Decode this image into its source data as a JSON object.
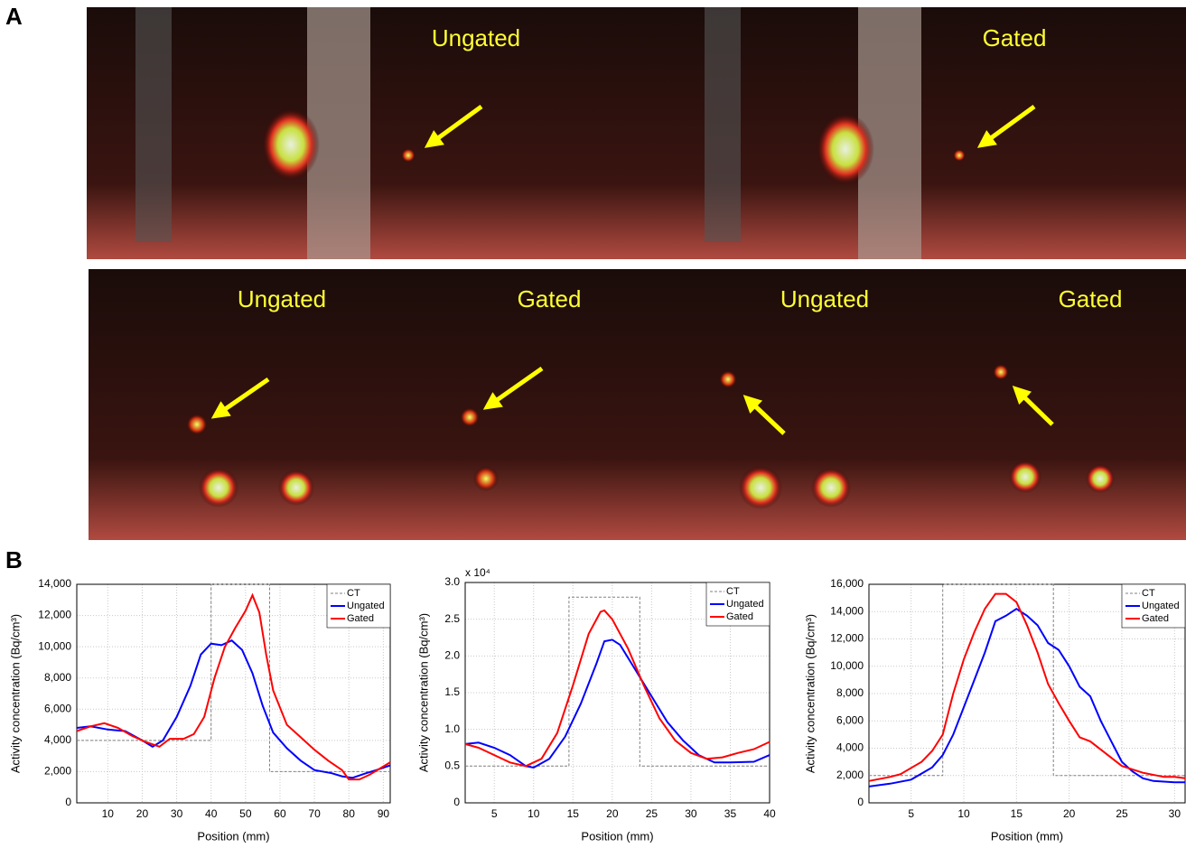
{
  "panel_a": {
    "label": "A",
    "top_images": [
      "Ungated",
      "Gated"
    ],
    "bottom_images": [
      "Ungated",
      "Gated",
      "Ungated",
      "Gated"
    ]
  },
  "panel_b": {
    "label": "B"
  },
  "chart_data": [
    {
      "type": "line",
      "xlabel": "Position (mm)",
      "ylabel": "Activity concentration (Bq/cm³)",
      "xlim": [
        1,
        92
      ],
      "xticks": [
        10,
        20,
        30,
        40,
        50,
        60,
        70,
        80,
        90
      ],
      "ylim": [
        0,
        14000
      ],
      "yticks": [
        0,
        {
          "value": 2000,
          "label": "2,000"
        },
        {
          "value": 4000,
          "label": "4,000"
        },
        {
          "value": 6000,
          "label": "6,000"
        },
        {
          "value": 8000,
          "label": "8,000"
        },
        {
          "value": 10000,
          "label": "10,000"
        },
        {
          "value": 12000,
          "label": "12,000"
        },
        {
          "value": 14000,
          "label": "14,000"
        }
      ],
      "grid": true,
      "legend": "upper right",
      "series": [
        {
          "name": "CT",
          "color": "#808080",
          "linestyle": "dashed",
          "x": [
            1,
            40,
            40,
            57,
            57,
            92
          ],
          "values": [
            4000,
            4000,
            14000,
            14000,
            2000,
            2000
          ]
        },
        {
          "name": "Ungated",
          "color": "#0000ff",
          "linestyle": "solid",
          "x": [
            1,
            5,
            10,
            15,
            20,
            23,
            26,
            30,
            34,
            37,
            40,
            43,
            46,
            49,
            52,
            55,
            58,
            62,
            66,
            70,
            75,
            78,
            81,
            85,
            88,
            92
          ],
          "values": [
            4800,
            4900,
            4700,
            4600,
            4000,
            3600,
            4000,
            5500,
            7500,
            9500,
            10200,
            10100,
            10400,
            9800,
            8300,
            6200,
            4500,
            3500,
            2700,
            2100,
            1900,
            1700,
            1600,
            1900,
            2100,
            2400
          ]
        },
        {
          "name": "Gated",
          "color": "#ff0000",
          "linestyle": "solid",
          "x": [
            1,
            5,
            9,
            13,
            17,
            21,
            25,
            28,
            32,
            35,
            38,
            41,
            44,
            47,
            50,
            52,
            54,
            56,
            58,
            62,
            66,
            70,
            74,
            78,
            80,
            83,
            86,
            92
          ],
          "values": [
            4600,
            4900,
            5100,
            4800,
            4300,
            3900,
            3600,
            4100,
            4100,
            4400,
            5500,
            8000,
            10000,
            11200,
            12300,
            13300,
            12200,
            9500,
            7200,
            5000,
            4200,
            3400,
            2700,
            2100,
            1500,
            1500,
            1800,
            2600
          ]
        }
      ]
    },
    {
      "type": "line",
      "xlabel": "Position (mm)",
      "ylabel": "Activity concentration (Bq/cm³)",
      "yscale_label": "x 10⁴",
      "xlim": [
        1.3,
        40
      ],
      "xticks": [
        5,
        10,
        15,
        20,
        25,
        30,
        35,
        40
      ],
      "ylim": [
        0,
        3
      ],
      "yticks": [
        0,
        0.5,
        {
          "value": 1,
          "label": "1.0"
        },
        1.5,
        {
          "value": 2,
          "label": "2.0"
        },
        2.5,
        {
          "value": 3,
          "label": "3.0"
        }
      ],
      "grid": true,
      "legend": "upper right",
      "series": [
        {
          "name": "CT",
          "color": "#808080",
          "linestyle": "dashed",
          "x": [
            1.3,
            14.5,
            14.5,
            23.5,
            23.5,
            40
          ],
          "values": [
            0.5,
            0.5,
            2.8,
            2.8,
            0.5,
            0.5
          ]
        },
        {
          "name": "Ungated",
          "color": "#0000ff",
          "linestyle": "solid",
          "x": [
            1.3,
            3,
            5,
            7,
            9,
            10,
            12,
            14,
            16,
            18,
            19,
            20,
            21,
            23,
            25,
            27,
            29,
            31,
            33,
            35,
            38,
            40
          ],
          "values": [
            0.8,
            0.82,
            0.75,
            0.65,
            0.5,
            0.48,
            0.6,
            0.9,
            1.35,
            1.9,
            2.2,
            2.22,
            2.15,
            1.8,
            1.45,
            1.1,
            0.85,
            0.65,
            0.55,
            0.55,
            0.56,
            0.65
          ]
        },
        {
          "name": "Gated",
          "color": "#ff0000",
          "linestyle": "solid",
          "x": [
            1.3,
            3,
            5,
            7,
            9,
            11,
            13,
            15,
            17,
            18.5,
            19,
            20,
            22,
            24,
            26,
            28,
            30,
            32,
            34,
            36,
            38,
            40
          ],
          "values": [
            0.8,
            0.75,
            0.65,
            0.55,
            0.5,
            0.6,
            0.95,
            1.6,
            2.3,
            2.6,
            2.62,
            2.5,
            2.1,
            1.6,
            1.15,
            0.85,
            0.68,
            0.6,
            0.62,
            0.68,
            0.73,
            0.83
          ]
        }
      ]
    },
    {
      "type": "line",
      "xlabel": "Position (mm)",
      "ylabel": "Activity concentration (Bq/cm³)",
      "xlim": [
        1,
        31
      ],
      "xticks": [
        5,
        10,
        15,
        20,
        25,
        30
      ],
      "ylim": [
        0,
        16000
      ],
      "yticks": [
        0,
        {
          "value": 2000,
          "label": "2,000"
        },
        {
          "value": 4000,
          "label": "4,000"
        },
        {
          "value": 6000,
          "label": "6,000"
        },
        {
          "value": 8000,
          "label": "8,000"
        },
        {
          "value": 10000,
          "label": "10,000"
        },
        {
          "value": 12000,
          "label": "12,000"
        },
        {
          "value": 14000,
          "label": "14,000"
        },
        {
          "value": 16000,
          "label": "16,000"
        }
      ],
      "grid": true,
      "legend": "upper right",
      "series": [
        {
          "name": "CT",
          "color": "#808080",
          "linestyle": "dashed",
          "x": [
            1,
            8,
            8,
            18.5,
            18.5,
            31
          ],
          "values": [
            2000,
            2000,
            16000,
            16000,
            2000,
            2000
          ]
        },
        {
          "name": "Ungated",
          "color": "#0000ff",
          "linestyle": "solid",
          "x": [
            1,
            3,
            5,
            7,
            8,
            9,
            10,
            11,
            12,
            13,
            14,
            15,
            16,
            17,
            18,
            19,
            20,
            21,
            22,
            23,
            24,
            25,
            26,
            27,
            28,
            30,
            31
          ],
          "values": [
            1200,
            1400,
            1700,
            2600,
            3500,
            5000,
            7000,
            9000,
            11000,
            13300,
            13700,
            14200,
            13700,
            13000,
            11700,
            11200,
            10000,
            8500,
            7800,
            6000,
            4500,
            3000,
            2300,
            1800,
            1600,
            1500,
            1500
          ]
        },
        {
          "name": "Gated",
          "color": "#ff0000",
          "linestyle": "solid",
          "x": [
            1,
            3,
            4,
            6,
            7,
            8,
            9,
            10,
            11,
            12,
            13,
            14,
            15,
            16,
            17,
            18,
            19,
            20,
            21,
            22,
            24,
            25,
            27,
            29,
            30,
            31
          ],
          "values": [
            1600,
            1900,
            2100,
            3000,
            3800,
            5000,
            8000,
            10500,
            12500,
            14200,
            15300,
            15300,
            14700,
            13000,
            11000,
            8700,
            7300,
            6000,
            4800,
            4500,
            3300,
            2700,
            2200,
            1900,
            1900,
            1800
          ]
        }
      ]
    }
  ]
}
